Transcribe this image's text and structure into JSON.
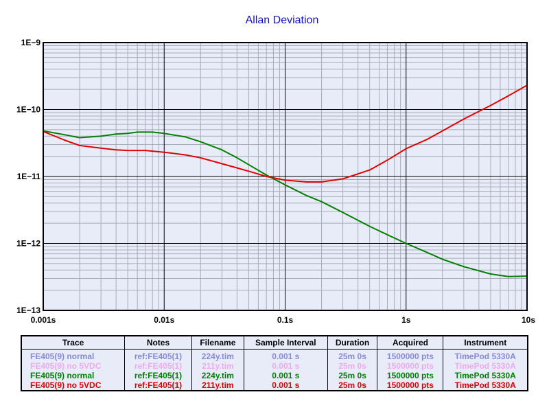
{
  "chart_data": {
    "type": "line",
    "title": "Allan Deviation",
    "x_scale": "log",
    "y_scale": "log",
    "xlim": [
      0.001,
      10
    ],
    "ylim": [
      1e-13,
      1e-09
    ],
    "grid": true,
    "x_tick_values": [
      0.001,
      0.01,
      0.1,
      1,
      10
    ],
    "x_tick_labels": [
      "0.001s",
      "0.01s",
      "0.1s",
      "1s",
      "10s"
    ],
    "y_tick_values": [
      1e-09,
      1e-10,
      1e-11,
      1e-12,
      1e-13
    ],
    "y_tick_labels": [
      "1E−9",
      "1E−10",
      "1E−11",
      "1E−12",
      "1E−13"
    ],
    "series": [
      {
        "name": "FE405(9) normal",
        "color": "#008000",
        "x": [
          0.001,
          0.0015,
          0.002,
          0.003,
          0.004,
          0.005,
          0.006,
          0.008,
          0.01,
          0.015,
          0.02,
          0.03,
          0.04,
          0.05,
          0.07,
          0.1,
          0.15,
          0.2,
          0.3,
          0.5,
          0.7,
          1,
          1.5,
          2,
          3,
          5,
          7,
          10
        ],
        "y": [
          4.8e-11,
          4.2e-11,
          3.8e-11,
          4e-11,
          4.3e-11,
          4.4e-11,
          4.6e-11,
          4.6e-11,
          4.4e-11,
          3.9e-11,
          3.3e-11,
          2.5e-11,
          1.9e-11,
          1.5e-11,
          1.05e-11,
          7.5e-12,
          5.2e-12,
          4.2e-12,
          2.9e-12,
          1.8e-12,
          1.35e-12,
          1e-12,
          7.3e-13,
          5.8e-13,
          4.5e-13,
          3.5e-13,
          3.2e-13,
          3.25e-13
        ]
      },
      {
        "name": "FE405(9) no 5VDC",
        "color": "#e00000",
        "x": [
          0.001,
          0.0015,
          0.002,
          0.003,
          0.004,
          0.005,
          0.007,
          0.01,
          0.015,
          0.02,
          0.03,
          0.05,
          0.07,
          0.1,
          0.15,
          0.2,
          0.3,
          0.5,
          0.7,
          1,
          1.5,
          2,
          3,
          5,
          7,
          10
        ],
        "y": [
          4.7e-11,
          3.5e-11,
          2.9e-11,
          2.65e-11,
          2.5e-11,
          2.45e-11,
          2.45e-11,
          2.3e-11,
          2.1e-11,
          1.9e-11,
          1.55e-11,
          1.2e-11,
          1e-11,
          8.8e-12,
          8.3e-12,
          8.3e-12,
          9.2e-12,
          1.25e-11,
          1.75e-11,
          2.6e-11,
          3.6e-11,
          4.8e-11,
          7.2e-11,
          1.15e-10,
          1.6e-10,
          2.3e-10
        ]
      }
    ]
  },
  "legend": {
    "headers": [
      "Trace",
      "Notes",
      "Filename",
      "Sample Interval",
      "Duration",
      "Acquired",
      "Instrument"
    ],
    "rows": [
      {
        "color": "#8888dd",
        "cells": [
          "FE405(9) normal",
          "ref:FE405(1)",
          "224y.tim",
          "0.001 s",
          "25m 0s",
          "1500000 pts",
          "TimePod 5330A"
        ]
      },
      {
        "color": "#f0a8f0",
        "cells": [
          "FE405(9) no 5VDC",
          "ref:FE405(1)",
          "211y.tim",
          "0.001 s",
          "25m 0s",
          "1500000 pts",
          "TimePod 5330A"
        ]
      },
      {
        "color": "#008000",
        "cells": [
          "FE405(9) normal",
          "ref:FE405(1)",
          "224y.tim",
          "0.001 s",
          "25m 0s",
          "1500000 pts",
          "TimePod 5330A"
        ]
      },
      {
        "color": "#e00000",
        "cells": [
          "FE405(9) no 5VDC",
          "ref:FE405(1)",
          "211y.tim",
          "0.001 s",
          "25m 0s",
          "1500000 pts",
          "TimePod 5330A"
        ]
      }
    ]
  }
}
